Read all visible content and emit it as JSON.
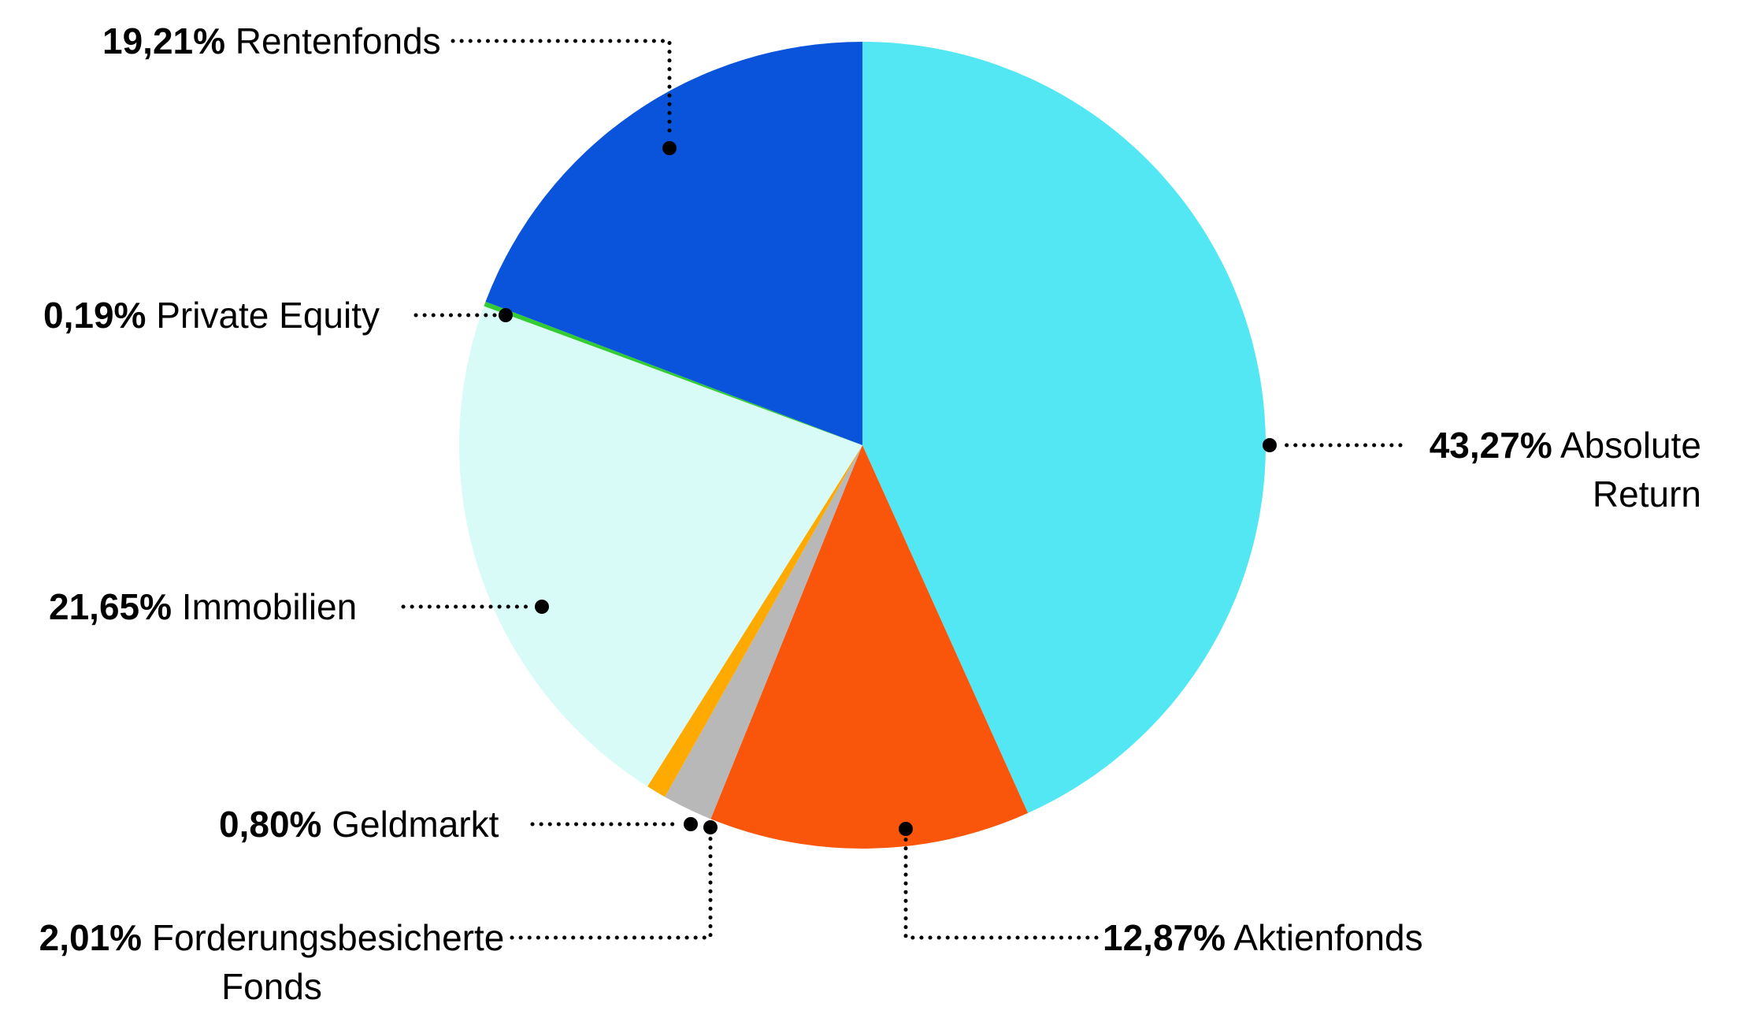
{
  "chart_data": {
    "type": "pie",
    "title": "",
    "unit": "%",
    "start_angle_deg": 0,
    "direction": "clockwise",
    "background_color": "#ffffff",
    "leader_line_color": "#000000",
    "label_text_color": "#000000",
    "slices": [
      {
        "label": "Absolute Return",
        "value": 43.27,
        "display": "43,27%",
        "color": "#52E7F2"
      },
      {
        "label": "Aktienfonds",
        "value": 12.87,
        "display": "12,87%",
        "color": "#F9560B"
      },
      {
        "label": "Forderungsbesicherte Fonds",
        "value": 2.01,
        "display": "2,01%",
        "color": "#B8B8B8"
      },
      {
        "label": "Geldmarkt",
        "value": 0.8,
        "display": "0,80%",
        "color": "#FFAA00"
      },
      {
        "label": "Immobilien",
        "value": 21.65,
        "display": "21,65%",
        "color": "#D9FBF8"
      },
      {
        "label": "Private Equity",
        "value": 0.19,
        "display": "0,19%",
        "color": "#33CC33"
      },
      {
        "label": "Rentenfonds",
        "value": 19.21,
        "display": "19,21%",
        "color": "#0A54DC"
      }
    ]
  }
}
